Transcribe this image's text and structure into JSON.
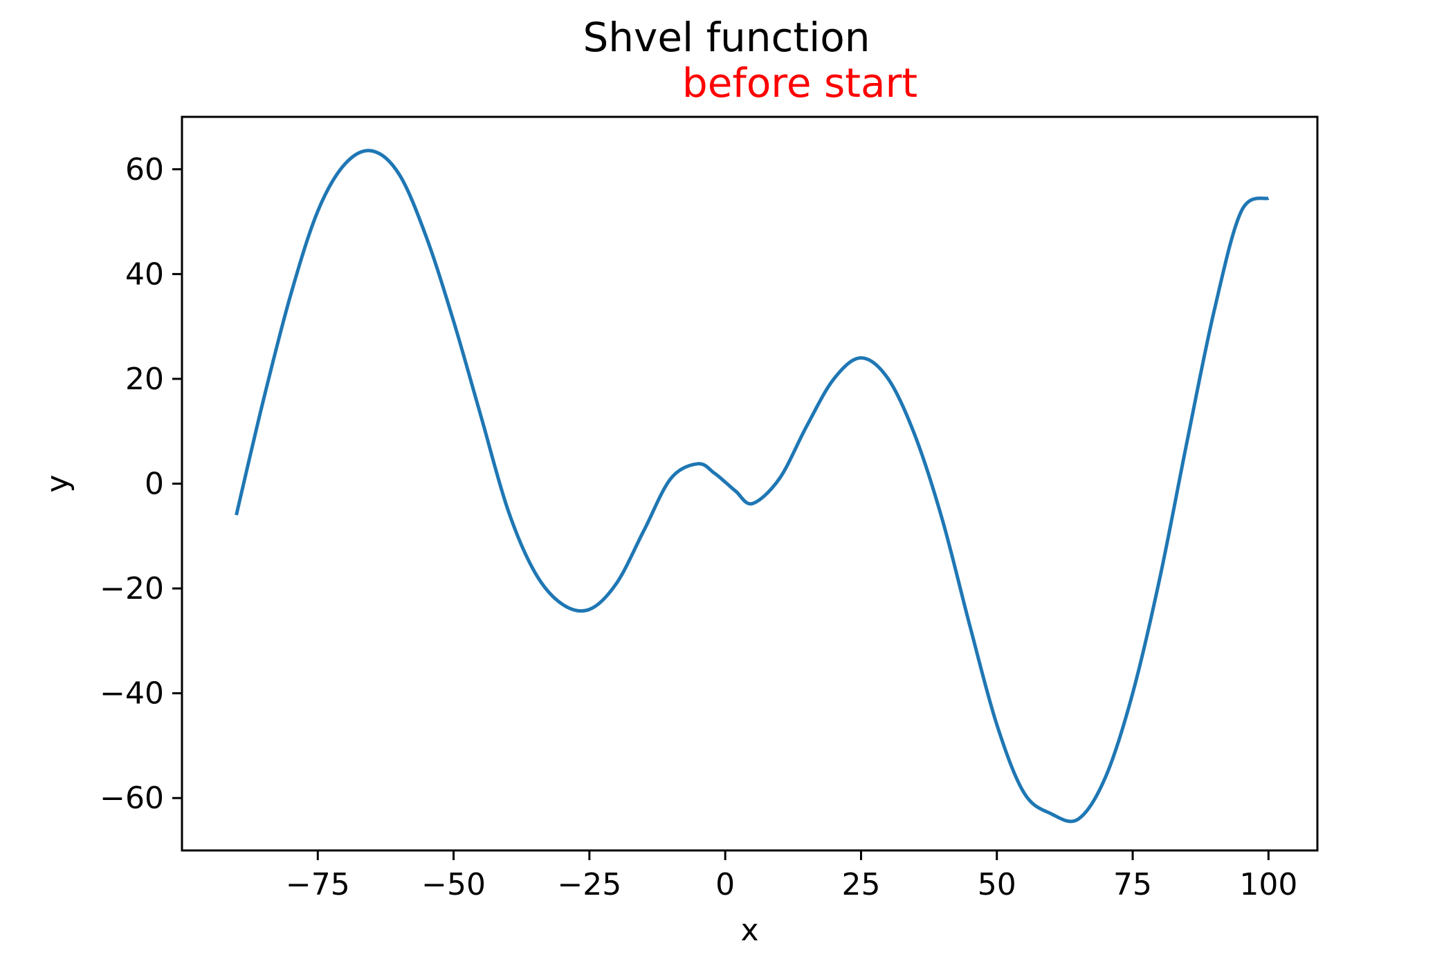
{
  "chart_data": {
    "type": "line",
    "title": "Shvel function",
    "subtitle": "before start",
    "subtitle_color": "#ff0000",
    "xlabel": "x",
    "ylabel": "y",
    "xlim": [
      -100,
      109
    ],
    "ylim": [
      -70,
      70
    ],
    "xticks": [
      -75,
      -50,
      -25,
      0,
      25,
      50,
      75,
      100
    ],
    "xtick_labels": [
      "−75",
      "−50",
      "−25",
      "0",
      "25",
      "50",
      "75",
      "100"
    ],
    "yticks": [
      -60,
      -40,
      -20,
      0,
      20,
      40,
      60
    ],
    "ytick_labels": [
      "−60",
      "−40",
      "−20",
      "0",
      "20",
      "40",
      "60"
    ],
    "grid": false,
    "line_color": "#1f77b4",
    "series": [
      {
        "x": [
          -90,
          -85,
          -80,
          -75,
          -70,
          -65,
          -60,
          -55,
          -50,
          -45,
          -40,
          -35,
          -30,
          -25,
          -20,
          -15,
          -10,
          -5,
          -2,
          0,
          2,
          5,
          10,
          15,
          20,
          25,
          30,
          35,
          40,
          45,
          50,
          55,
          60,
          65,
          70,
          75,
          80,
          85,
          90,
          95,
          100
        ],
        "y": [
          -6,
          16,
          36,
          52,
          61,
          63.5,
          59,
          47,
          31,
          13,
          -5,
          -17,
          -23,
          -24,
          -19,
          -9,
          1,
          3.8,
          2,
          0.3,
          -1.5,
          -3.8,
          1,
          11,
          20,
          24,
          20,
          9,
          -7,
          -27,
          -46,
          -59,
          -63,
          -64,
          -56,
          -40,
          -18,
          8,
          33,
          52,
          54.5
        ]
      }
    ]
  }
}
